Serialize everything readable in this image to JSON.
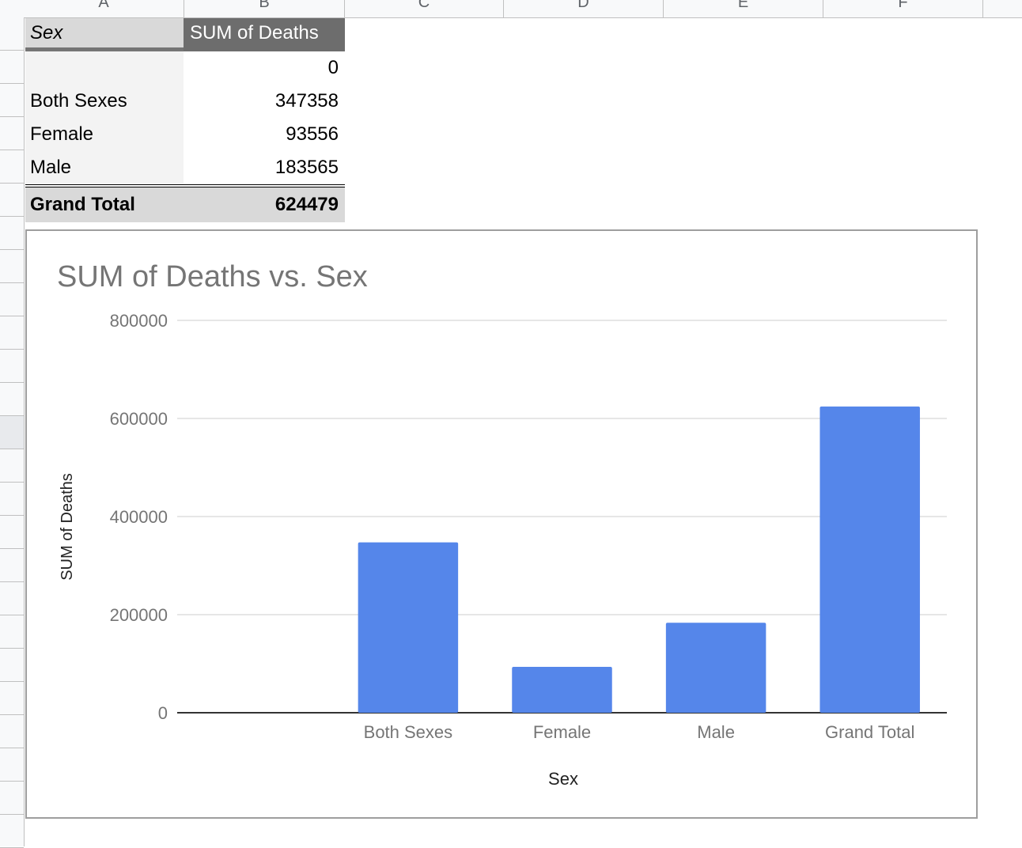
{
  "sheet": {
    "column_headers": [
      "A",
      "B",
      "C",
      "D",
      "E",
      "F"
    ]
  },
  "pivot_table": {
    "header": {
      "row_label": "Sex",
      "value_label": "SUM of Deaths"
    },
    "rows": [
      {
        "label": "",
        "value": "0"
      },
      {
        "label": "Both Sexes",
        "value": "347358"
      },
      {
        "label": "Female",
        "value": "93556"
      },
      {
        "label": "Male",
        "value": "183565"
      }
    ],
    "total": {
      "label": "Grand Total",
      "value": "624479"
    }
  },
  "chart_data": {
    "type": "bar",
    "title": "SUM of Deaths vs. Sex",
    "xlabel": "Sex",
    "ylabel": "SUM of Deaths",
    "categories": [
      "",
      "Both Sexes",
      "Female",
      "Male",
      "Grand Total"
    ],
    "values": [
      0,
      347358,
      93556,
      183565,
      624479
    ],
    "ylim": [
      0,
      800000
    ],
    "yticks": [
      "0",
      "200000",
      "400000",
      "600000",
      "800000"
    ],
    "grid": true,
    "legend": "none",
    "bar_color": "#5586ea"
  }
}
